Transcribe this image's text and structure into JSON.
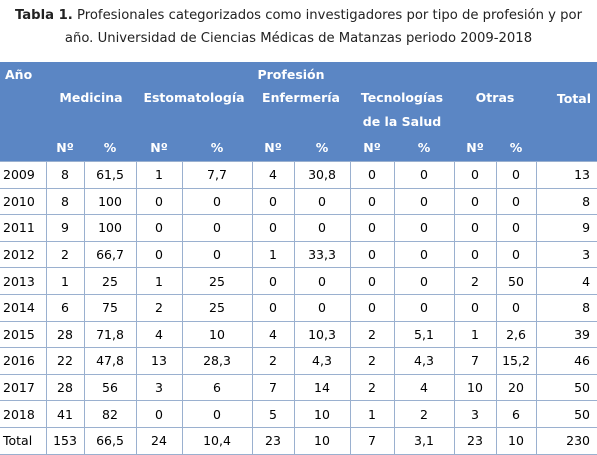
{
  "caption": {
    "label": "Tabla 1.",
    "line1": " Profesionales categorizados como investigadores por tipo de profesión y por",
    "line2": "año. Universidad de Ciencias Médicas de Matanzas periodo 2009-2018"
  },
  "header": {
    "year": "Año",
    "profession": "Profesión",
    "groups": [
      "Medicina",
      "Estomatología",
      "Enfermería",
      "Tecnologías",
      "Otras",
      "Total"
    ],
    "group_sub": "de la Salud",
    "sub": [
      "Nº",
      "%",
      "Nº",
      "%",
      "Nº",
      "%",
      "Nº",
      "%",
      "Nº",
      "%"
    ]
  },
  "rows": [
    [
      "2009",
      "8",
      "61,5",
      "1",
      "7,7",
      "4",
      "30,8",
      "0",
      "0",
      "0",
      "0",
      "13"
    ],
    [
      "2010",
      "8",
      "100",
      "0",
      "0",
      "0",
      "0",
      "0",
      "0",
      "0",
      "0",
      "8"
    ],
    [
      "2011",
      "9",
      "100",
      "0",
      "0",
      "0",
      "0",
      "0",
      "0",
      "0",
      "0",
      "9"
    ],
    [
      "2012",
      "2",
      "66,7",
      "0",
      "0",
      "1",
      "33,3",
      "0",
      "0",
      "0",
      "0",
      "3"
    ],
    [
      "2013",
      "1",
      "25",
      "1",
      "25",
      "0",
      "0",
      "0",
      "0",
      "2",
      "50",
      "4"
    ],
    [
      "2014",
      "6",
      "75",
      "2",
      "25",
      "0",
      "0",
      "0",
      "0",
      "0",
      "0",
      "8"
    ],
    [
      "2015",
      "28",
      "71,8",
      "4",
      "10",
      "4",
      "10,3",
      "2",
      "5,1",
      "1",
      "2,6",
      "39"
    ],
    [
      "2016",
      "22",
      "47,8",
      "13",
      "28,3",
      "2",
      "4,3",
      "2",
      "4,3",
      "7",
      "15,2",
      "46"
    ],
    [
      "2017",
      "28",
      "56",
      "3",
      "6",
      "7",
      "14",
      "2",
      "4",
      "10",
      "20",
      "50"
    ],
    [
      "2018",
      "41",
      "82",
      "0",
      "0",
      "5",
      "10",
      "1",
      "2",
      "3",
      "6",
      "50"
    ],
    [
      "Total",
      "153",
      "66,5",
      "24",
      "10,4",
      "23",
      "10",
      "7",
      "3,1",
      "23",
      "10",
      "230"
    ]
  ]
}
